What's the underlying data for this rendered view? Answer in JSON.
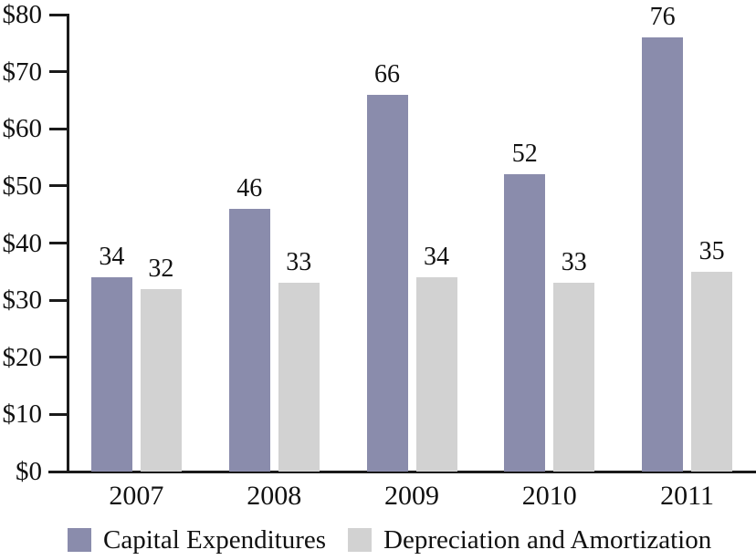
{
  "chart_data": {
    "type": "bar",
    "categories": [
      "2007",
      "2008",
      "2009",
      "2010",
      "2011"
    ],
    "series": [
      {
        "name": "Capital Expenditures",
        "color": "#8a8cac",
        "values": [
          34,
          46,
          66,
          52,
          76
        ]
      },
      {
        "name": "Depreciation and Amortization",
        "color": "#d2d2d2",
        "values": [
          32,
          33,
          34,
          33,
          35
        ]
      }
    ],
    "title": "",
    "xlabel": "",
    "ylabel": "",
    "ylim": [
      0,
      80
    ],
    "ytick_step": 10,
    "ytick_labels": [
      "$0",
      "$10",
      "$20",
      "$30",
      "$40",
      "$50",
      "$60",
      "$70",
      "$80"
    ],
    "grid": false,
    "legend_position": "bottom",
    "bar_value_labels": true,
    "axis_color": "#1a1a1a",
    "text_color": "#111111"
  }
}
